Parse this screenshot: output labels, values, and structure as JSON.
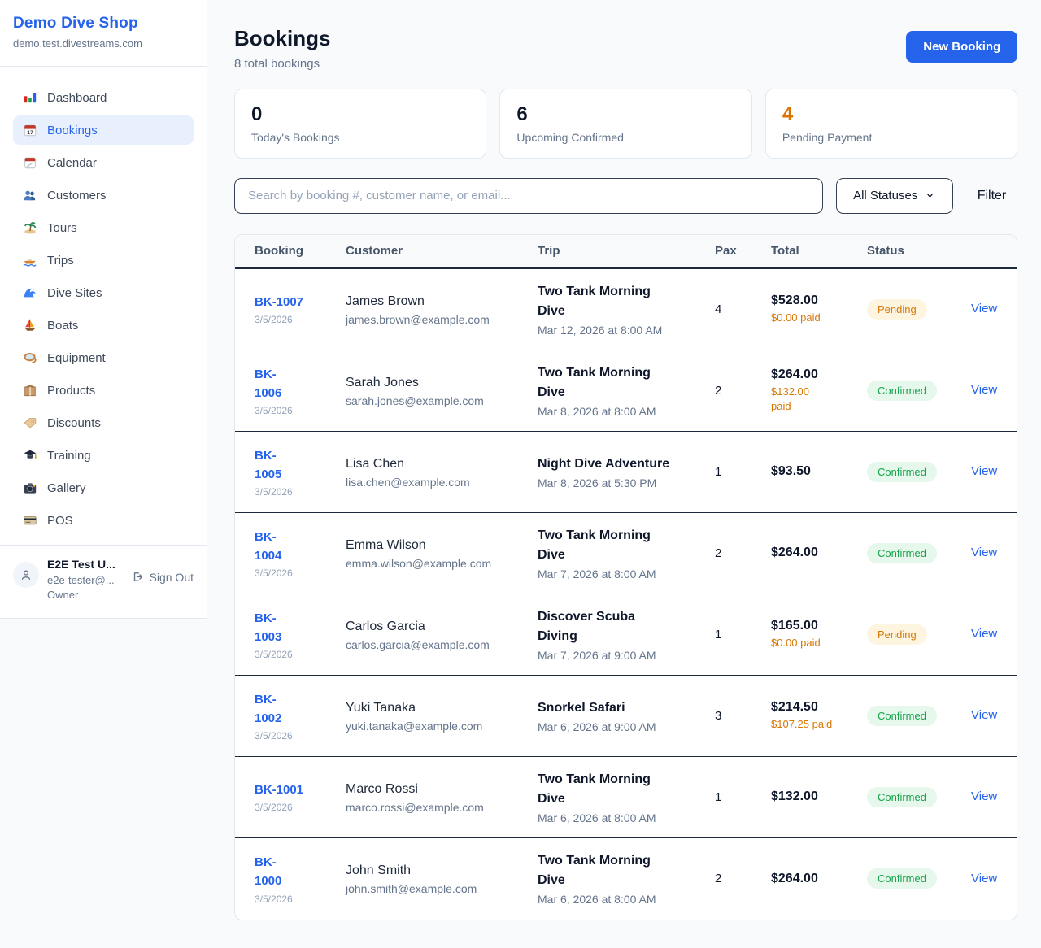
{
  "app": {
    "name": "Demo Dive Shop",
    "domain": "demo.test.divestreams.com"
  },
  "sidebar": {
    "items": [
      {
        "label": "Dashboard",
        "icon": "bar-chart-icon",
        "active": false
      },
      {
        "label": "Bookings",
        "icon": "bookings-calendar-icon",
        "active": true
      },
      {
        "label": "Calendar",
        "icon": "calendar-icon",
        "active": false
      },
      {
        "label": "Customers",
        "icon": "customers-icon",
        "active": false
      },
      {
        "label": "Tours",
        "icon": "island-icon",
        "active": false
      },
      {
        "label": "Trips",
        "icon": "speedboat-icon",
        "active": false
      },
      {
        "label": "Dive Sites",
        "icon": "wave-icon",
        "active": false
      },
      {
        "label": "Boats",
        "icon": "sailboat-icon",
        "active": false
      },
      {
        "label": "Equipment",
        "icon": "dive-mask-icon",
        "active": false
      },
      {
        "label": "Products",
        "icon": "package-icon",
        "active": false
      },
      {
        "label": "Discounts",
        "icon": "tag-icon",
        "active": false
      },
      {
        "label": "Training",
        "icon": "graduation-cap-icon",
        "active": false
      },
      {
        "label": "Gallery",
        "icon": "camera-icon",
        "active": false
      },
      {
        "label": "POS",
        "icon": "credit-card-icon",
        "active": false
      }
    ],
    "user": {
      "name": "E2E Test U...",
      "email": "e2e-tester@...",
      "role": "Owner",
      "sign_out_label": "Sign Out"
    }
  },
  "header": {
    "title": "Bookings",
    "subtitle": "8 total bookings",
    "new_booking_label": "New Booking"
  },
  "stats": [
    {
      "value": "0",
      "label": "Today's Bookings",
      "color": "#0f172a"
    },
    {
      "value": "6",
      "label": "Upcoming Confirmed",
      "color": "#0f172a"
    },
    {
      "value": "4",
      "label": "Pending Payment",
      "color": "#d97706"
    }
  ],
  "filters": {
    "search_placeholder": "Search by booking #, customer name, or email...",
    "status_filter_value": "All Statuses",
    "filter_label": "Filter"
  },
  "table": {
    "columns": [
      "Booking",
      "Customer",
      "Trip",
      "Pax",
      "Total",
      "Status"
    ],
    "view_label": "View",
    "rows": [
      {
        "id": "BK-1007",
        "id_break": "",
        "date": "3/5/2026",
        "customer": "James Brown",
        "email": "james.brown@example.com",
        "trip": "Two Tank Morning Dive",
        "trip_break": "Two Tank Morning",
        "trip_date": "Mar 12, 2026 at 8:00 AM",
        "pax": "4",
        "total": "$528.00",
        "paid": "$0.00 paid",
        "paid_break": "",
        "status": "Pending"
      },
      {
        "id": "BK-1006",
        "id_break": "BK-",
        "date": "3/5/2026",
        "customer": "Sarah Jones",
        "email": "sarah.jones@example.com",
        "trip": "Two Tank Morning Dive",
        "trip_break": "Two Tank Morning",
        "trip_date": "Mar 8, 2026 at 8:00 AM",
        "pax": "2",
        "total": "$264.00",
        "paid": "$132.00 paid",
        "paid_break": "$132.00",
        "status": "Confirmed"
      },
      {
        "id": "BK-1005",
        "id_break": "BK-",
        "date": "3/5/2026",
        "customer": "Lisa Chen",
        "email": "lisa.chen@example.com",
        "trip": "Night Dive Adventure",
        "trip_break": "",
        "trip_date": "Mar 8, 2026 at 5:30 PM",
        "pax": "1",
        "total": "$93.50",
        "paid": "",
        "paid_break": "",
        "status": "Confirmed"
      },
      {
        "id": "BK-1004",
        "id_break": "BK-",
        "date": "3/5/2026",
        "customer": "Emma Wilson",
        "email": "emma.wilson@example.com",
        "trip": "Two Tank Morning Dive",
        "trip_break": "Two Tank Morning",
        "trip_date": "Mar 7, 2026 at 8:00 AM",
        "pax": "2",
        "total": "$264.00",
        "paid": "",
        "paid_break": "",
        "status": "Confirmed"
      },
      {
        "id": "BK-1003",
        "id_break": "BK-",
        "date": "3/5/2026",
        "customer": "Carlos Garcia",
        "email": "carlos.garcia@example.com",
        "trip": "Discover Scuba Diving",
        "trip_break": "Discover Scuba",
        "trip_date": "Mar 7, 2026 at 9:00 AM",
        "pax": "1",
        "total": "$165.00",
        "paid": "$0.00 paid",
        "paid_break": "",
        "status": "Pending"
      },
      {
        "id": "BK-1002",
        "id_break": "BK-",
        "date": "3/5/2026",
        "customer": "Yuki Tanaka",
        "email": "yuki.tanaka@example.com",
        "trip": "Snorkel Safari",
        "trip_break": "",
        "trip_date": "Mar 6, 2026 at 9:00 AM",
        "pax": "3",
        "total": "$214.50",
        "paid": "$107.25 paid",
        "paid_break": "",
        "status": "Confirmed"
      },
      {
        "id": "BK-1001",
        "id_break": "",
        "date": "3/5/2026",
        "customer": "Marco Rossi",
        "email": "marco.rossi@example.com",
        "trip": "Two Tank Morning Dive",
        "trip_break": "Two Tank Morning",
        "trip_date": "Mar 6, 2026 at 8:00 AM",
        "pax": "1",
        "total": "$132.00",
        "paid": "",
        "paid_break": "",
        "status": "Confirmed"
      },
      {
        "id": "BK-1000",
        "id_break": "BK-",
        "date": "3/5/2026",
        "customer": "John Smith",
        "email": "john.smith@example.com",
        "trip": "Two Tank Morning Dive",
        "trip_break": "Two Tank Morning",
        "trip_date": "Mar 6, 2026 at 8:00 AM",
        "pax": "2",
        "total": "$264.00",
        "paid": "",
        "paid_break": "",
        "status": "Confirmed"
      }
    ]
  },
  "status_styles": {
    "Pending": {
      "bg": "#fdf5e0",
      "text": "#d97706"
    },
    "Confirmed": {
      "bg": "#e6f7ec",
      "text": "#16a34a"
    }
  },
  "colors": {
    "accent": "#2563eb",
    "paid_text": "#d97706"
  }
}
